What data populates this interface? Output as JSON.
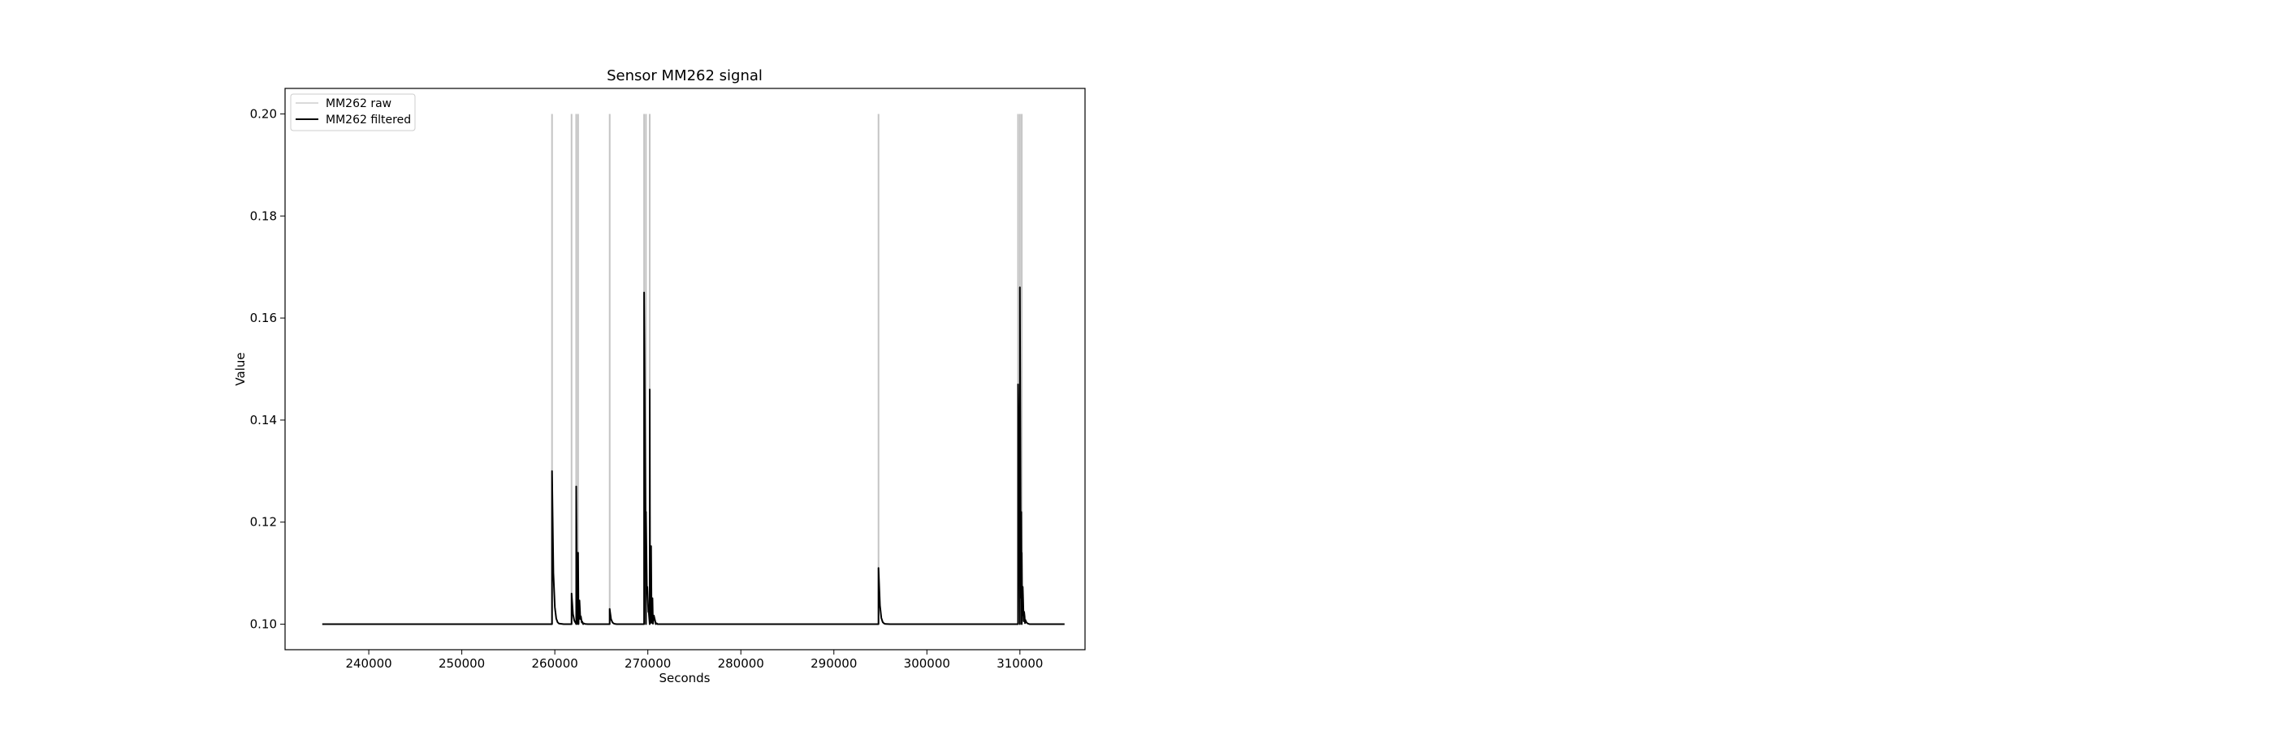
{
  "chart_data": {
    "type": "line",
    "title": "Sensor MM262 signal",
    "xlabel": "Seconds",
    "ylabel": "Value",
    "xlim": [
      231000,
      317000
    ],
    "ylim": [
      0.095,
      0.205
    ],
    "xticks": [
      240000,
      250000,
      260000,
      270000,
      280000,
      290000,
      300000,
      310000
    ],
    "yticks": [
      0.1,
      0.12,
      0.14,
      0.16,
      0.18,
      0.2
    ],
    "ytick_labels": [
      "0.10",
      "0.12",
      "0.14",
      "0.16",
      "0.18",
      "0.20"
    ],
    "grid": false,
    "legend_position": "top-left",
    "baseline": 0.1,
    "x_range": [
      235000,
      314800
    ],
    "series": [
      {
        "name": "MM262 raw",
        "color": "#c4c4c4",
        "spikes": [
          {
            "x": 259700,
            "y": 0.2
          },
          {
            "x": 261800,
            "y": 0.2
          },
          {
            "x": 262300,
            "y": 0.2
          },
          {
            "x": 262500,
            "y": 0.2
          },
          {
            "x": 265900,
            "y": 0.2
          },
          {
            "x": 269600,
            "y": 0.2
          },
          {
            "x": 269800,
            "y": 0.2
          },
          {
            "x": 270200,
            "y": 0.2
          },
          {
            "x": 294800,
            "y": 0.2
          },
          {
            "x": 309800,
            "y": 0.2
          },
          {
            "x": 310000,
            "y": 0.2
          },
          {
            "x": 310200,
            "y": 0.2
          }
        ]
      },
      {
        "name": "MM262 filtered",
        "color": "#000000",
        "spikes": [
          {
            "x": 259700,
            "y": 0.13
          },
          {
            "x": 261800,
            "y": 0.106
          },
          {
            "x": 262300,
            "y": 0.127
          },
          {
            "x": 262500,
            "y": 0.114
          },
          {
            "x": 265900,
            "y": 0.103
          },
          {
            "x": 269600,
            "y": 0.165
          },
          {
            "x": 269800,
            "y": 0.122
          },
          {
            "x": 270200,
            "y": 0.146
          },
          {
            "x": 294800,
            "y": 0.111
          },
          {
            "x": 309800,
            "y": 0.147
          },
          {
            "x": 310000,
            "y": 0.166
          },
          {
            "x": 310200,
            "y": 0.114
          }
        ]
      }
    ]
  }
}
